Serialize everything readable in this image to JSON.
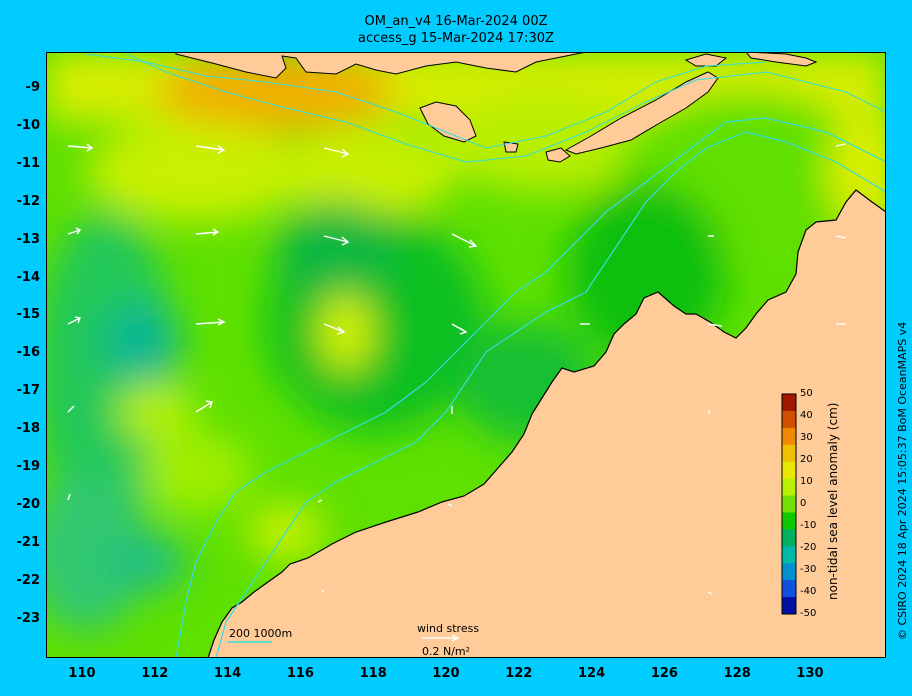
{
  "header": {
    "line1": "OM_an_v4  16-Mar-2024 00Z",
    "line2": "access_g 15-Mar-2024 17:30Z"
  },
  "axes": {
    "lat_labels": [
      "-9",
      "-10",
      "-11",
      "-12",
      "-13",
      "-14",
      "-15",
      "-16",
      "-17",
      "-18",
      "-19",
      "-20",
      "-21",
      "-22",
      "-23"
    ],
    "lon_labels": [
      "110",
      "112",
      "114",
      "116",
      "118",
      "120",
      "122",
      "124",
      "126",
      "128",
      "130"
    ]
  },
  "colorbar": {
    "label": "non-tidal sea level anomaly (cm)",
    "ticks": [
      "50",
      "40",
      "30",
      "20",
      "10",
      "0",
      "-10",
      "-20",
      "-30",
      "-40",
      "-50"
    ],
    "colors": [
      "#a01800",
      "#d05000",
      "#f08800",
      "#f0c000",
      "#e8e800",
      "#b8f000",
      "#70e000",
      "#10c800",
      "#00b060",
      "#00b8a8",
      "#0090d0",
      "#1050e0",
      "#0010a0"
    ]
  },
  "scale_bar": {
    "label": "200  1000m"
  },
  "wind_stress": {
    "label": "wind stress",
    "value": "0.2 N/m²"
  },
  "credit": "© CSIRO 2024  18 Apr 2024 15:05:37 BoM OceanMAPS v4",
  "colors": {
    "land": "#ffcc99",
    "frame": "#00ccff",
    "contour": "#33dddd"
  }
}
